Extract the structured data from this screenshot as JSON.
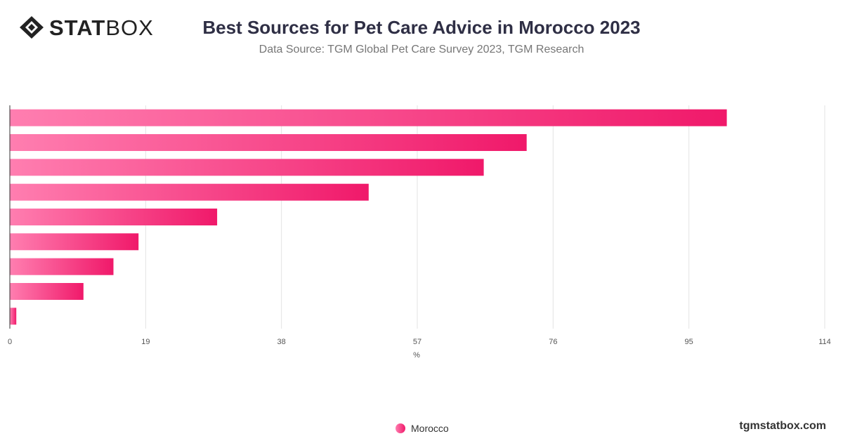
{
  "brand": {
    "logo_bold": "STAT",
    "logo_light": "BOX",
    "watermark": "tgmstatbox.com"
  },
  "colors": {
    "bar_start": "#ff7eb0",
    "bar_end": "#f0196a",
    "grid": "#e3e3e3",
    "axis": "#333333"
  },
  "chart_data": {
    "type": "bar",
    "orientation": "horizontal",
    "title": "Best Sources for Pet Care Advice in Morocco 2023",
    "subtitle": "Data Source: TGM Global Pet Care Survey 2023, TGM Research",
    "xlabel": "%",
    "xlim": [
      0,
      114
    ],
    "xticks": [
      0,
      19,
      38,
      57,
      76,
      95,
      114
    ],
    "grid": true,
    "legend_position": "bottom-center",
    "series": [
      {
        "name": "Morocco",
        "values": [
          100.3,
          72.3,
          66.3,
          50.2,
          29,
          18,
          14.5,
          10.3,
          0.9
        ]
      }
    ]
  }
}
